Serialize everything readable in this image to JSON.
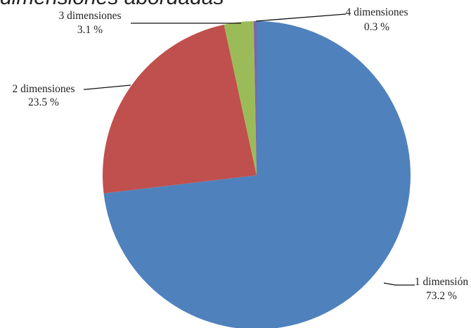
{
  "chart_data": {
    "type": "pie",
    "title": "dimensiones abordadas",
    "categories": [
      "1 dimensión",
      "2 dimensiones",
      "3 dimensiones",
      "4 dimensiones"
    ],
    "values": [
      73.2,
      23.5,
      3.1,
      0.3
    ],
    "value_labels": [
      "73.2 %",
      "23.5 %",
      "3.1 %",
      "0.3 %"
    ],
    "colors": [
      "#4f81bd",
      "#c0504d",
      "#9bbb59",
      "#8064a2"
    ],
    "legend": "none",
    "start_angle": "12 o'clock",
    "direction": "clockwise"
  }
}
